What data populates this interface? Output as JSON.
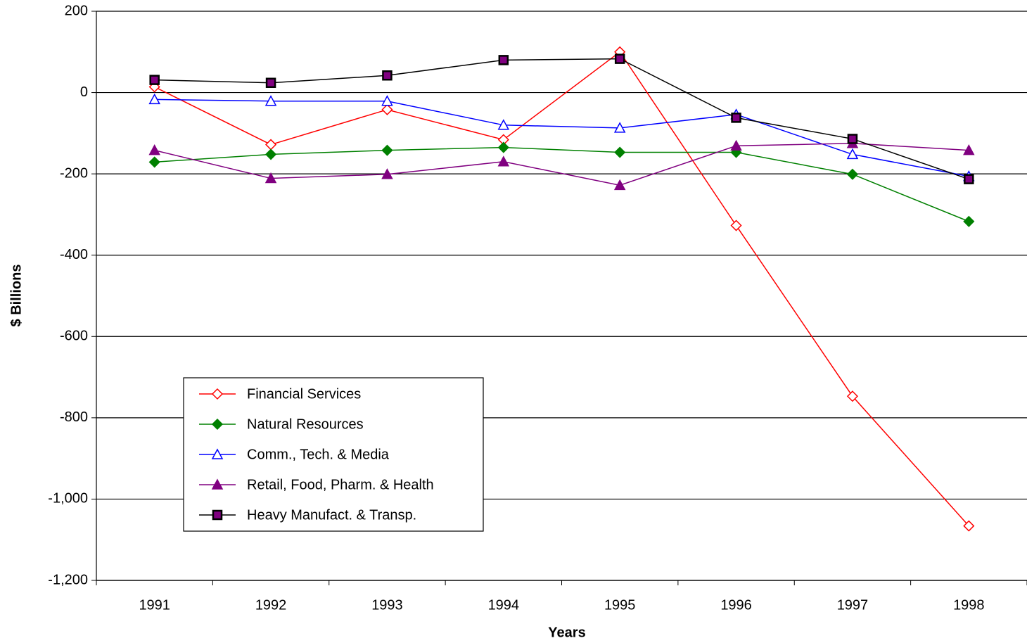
{
  "chart_data": {
    "type": "line",
    "x_label": "Years",
    "y_label": "$ Billions",
    "categories": [
      "1991",
      "1992",
      "1993",
      "1994",
      "1995",
      "1996",
      "1997",
      "1998"
    ],
    "ylim": [
      -1200,
      200
    ],
    "yticks": [
      {
        "value": -1200,
        "label": "-1,200"
      },
      {
        "value": -1000,
        "label": "-1,000"
      },
      -800,
      -600,
      -400,
      -200,
      0,
      200
    ],
    "grid": true,
    "legend": "lower left",
    "series": [
      {
        "name": "Financial Services",
        "color": "#ff0000",
        "marker": "diamond",
        "marker_fill": "#ffffff",
        "values": [
          14,
          -128,
          -42,
          -116,
          100,
          -327,
          -747,
          -1066
        ]
      },
      {
        "name": "Natural Resources",
        "color": "#008000",
        "marker": "diamond",
        "marker_fill": "#008000",
        "values": [
          -171,
          -152,
          -142,
          -135,
          -147,
          -147,
          -201,
          -317
        ]
      },
      {
        "name": "Comm., Tech. & Media",
        "color": "#0000ff",
        "marker": "triangle",
        "marker_fill": "#ffffff",
        "values": [
          -17,
          -21,
          -21,
          -80,
          -87,
          -54,
          -152,
          -206
        ]
      },
      {
        "name": "Retail, Food, Pharm. & Health",
        "color": "#800080",
        "marker": "triangle",
        "marker_fill": "#800080",
        "values": [
          -142,
          -211,
          -201,
          -170,
          -228,
          -131,
          -125,
          -142
        ]
      },
      {
        "name": "Heavy Manufact. & Transp.",
        "color": "#000000",
        "marker": "square",
        "marker_fill": "#800080",
        "values": [
          31,
          24,
          42,
          80,
          83,
          -62,
          -114,
          -213
        ]
      }
    ]
  }
}
